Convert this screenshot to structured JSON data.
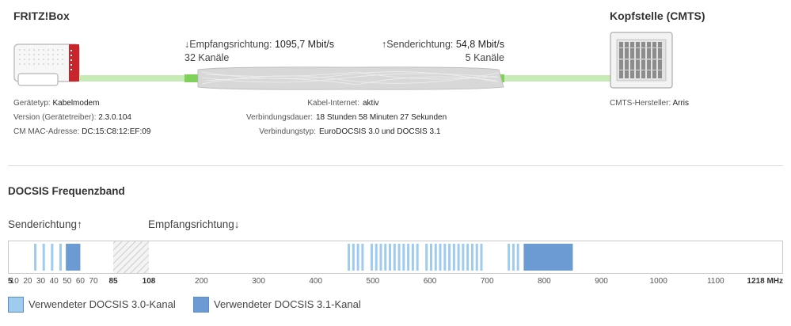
{
  "device": {
    "title": "FRITZ!Box",
    "info": [
      {
        "label": "Gerätetyp:",
        "value": "Kabelmodem"
      },
      {
        "label": "Version (Gerätetreiber):",
        "value": "2.3.0.104"
      },
      {
        "label": "CM MAC-Adresse:",
        "value": "DC:15:C8:12:EF:09"
      }
    ]
  },
  "cmts": {
    "title": "Kopfstelle (CMTS)",
    "manufacturer_label": "CMTS-Hersteller:",
    "manufacturer_value": "Arris"
  },
  "downstream": {
    "label": "↓Empfangsrichtung:",
    "rate": "1095,7 Mbit/s",
    "channels": "32 Kanäle"
  },
  "upstream": {
    "label": "↑Senderichtung:",
    "rate": "54,8 Mbit/s",
    "channels": "5 Kanäle"
  },
  "connection": [
    {
      "label": "Kabel-Internet:",
      "value": "aktiv"
    },
    {
      "label": "Verbindungsdauer:",
      "value": "18 Stunden 58 Minuten 27 Sekunden"
    },
    {
      "label": "Verbindungstyp:",
      "value": "EuroDOCSIS 3.0 und DOCSIS 3.1"
    }
  ],
  "band": {
    "title": "DOCSIS Frequenzband",
    "upstream_label": "Senderichtung↑",
    "downstream_label": "Empfangsrichtung↓",
    "up_ticks": [
      "5",
      "10",
      "20",
      "30",
      "40",
      "50",
      "60",
      "70",
      "85"
    ],
    "down_ticks": [
      "108",
      "200",
      "300",
      "400",
      "500",
      "600",
      "700",
      "800",
      "900",
      "1000",
      "1100",
      "1218 MHz"
    ],
    "unit": "MHz",
    "colors": {
      "docsis30": "#9ecbee",
      "docsis31": "#6b9bd2",
      "guard_hatch": "#cccccc"
    },
    "upstream_channels_30": [
      25.8,
      32.2,
      38.6,
      45.0
    ],
    "upstream_channels_31": [
      [
        49,
        60
      ]
    ],
    "downstream_channels_30": [
      458,
      466,
      474,
      482,
      498,
      506,
      514,
      522,
      530,
      538,
      546,
      554,
      562,
      570,
      578,
      594,
      602,
      610,
      618,
      626,
      634,
      642,
      650,
      658,
      666,
      674,
      682,
      690,
      738,
      746,
      754
    ],
    "downstream_channels_31": [
      [
        764,
        850
      ]
    ],
    "guard_band": [
      85,
      108
    ]
  },
  "legend": [
    {
      "label": "Verwendeter DOCSIS 3.0-Kanal",
      "color": "#9ecbee"
    },
    {
      "label": "Verwendeter DOCSIS 3.1-Kanal",
      "color": "#6b9bd2"
    }
  ]
}
